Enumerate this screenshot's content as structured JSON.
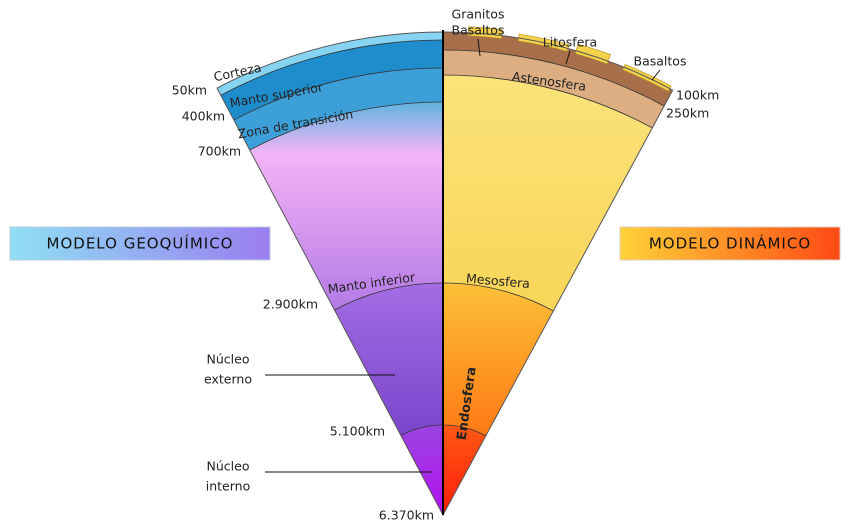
{
  "geochemical_model": {
    "title": "MODELO GEOQUÍMICO",
    "layers": [
      "Corteza",
      "Manto superior",
      "Zona de transición",
      "Manto inferior"
    ],
    "outer_core": [
      "Núcleo",
      "externo"
    ],
    "inner_core": [
      "Núcleo",
      "interno"
    ]
  },
  "dynamic_model": {
    "title": "MODELO DINÁMICO",
    "layers": [
      "Litosfera",
      "Astenosfera",
      "Mesosfera",
      "Endosfera"
    ],
    "crust": [
      "Granitos",
      "Basaltos",
      "Basaltos"
    ]
  },
  "depths": {
    "left": [
      "50km",
      "400km",
      "700km",
      "2.900km",
      "5.100km",
      "6.370km"
    ],
    "right": [
      "100km",
      "250km"
    ]
  }
}
